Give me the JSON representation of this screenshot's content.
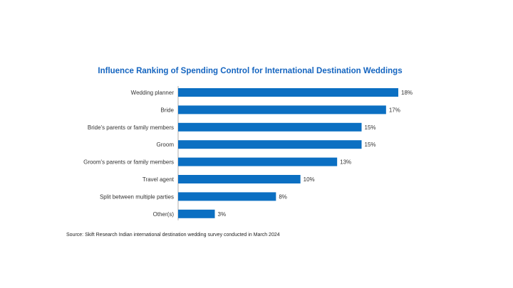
{
  "chart_data": {
    "type": "bar",
    "orientation": "horizontal",
    "title": "Influence Ranking of Spending Control for International Destination Weddings",
    "categories": [
      "Wedding planner",
      "Bride",
      "Bride's parents or family members",
      "Groom",
      "Groom's parents or family members",
      "Travel agent",
      "Split between multiple parties",
      "Other(s)"
    ],
    "values": [
      18,
      17,
      15,
      15,
      13,
      10,
      8,
      3
    ],
    "value_labels": [
      "18%",
      "17%",
      "15%",
      "15%",
      "13%",
      "10%",
      "8%",
      "3%"
    ],
    "unit": "%",
    "xlim": [
      0,
      18
    ],
    "grid": false,
    "legend": "none",
    "bar_color": "#0b6fc2",
    "source": "Source: Skift Research Indian international destination wedding survey conducted in March 2024"
  }
}
